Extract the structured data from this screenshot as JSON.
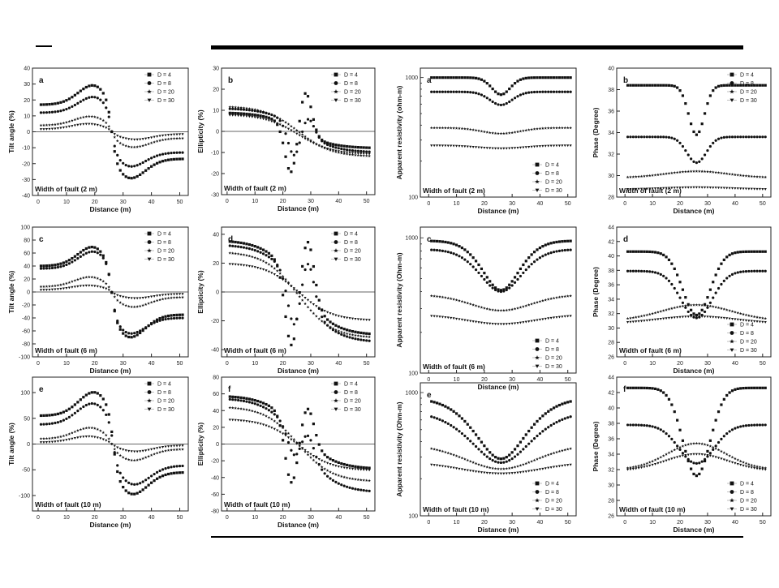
{
  "chart_data": [
    {
      "id": "tilt-2m",
      "type": "scatter",
      "panel_letter": "a",
      "annotation": "Width of fault (2 m)",
      "xlabel": "Distance (m)",
      "ylabel": "Tilt angle (%)",
      "xlim": [
        -2,
        53
      ],
      "ylim": [
        -40,
        40
      ],
      "xticks": [
        0,
        10,
        20,
        30,
        40,
        50
      ],
      "yticks": [
        -40,
        -30,
        -20,
        -10,
        0,
        10,
        20,
        30,
        40
      ],
      "zero_line": true,
      "legend_position": "top-right",
      "series": [
        {
          "name": "D = 4",
          "marker": "square",
          "shape": {
            "kind": "tilt",
            "peak": 32,
            "trough": -32,
            "base_l": 17,
            "base_r": -17,
            "x_peak": 21,
            "x_trough": 31
          }
        },
        {
          "name": "D = 8",
          "marker": "circle",
          "shape": {
            "kind": "tilt",
            "peak": 24,
            "trough": -24,
            "base_l": 12,
            "base_r": -13,
            "x_peak": 21,
            "x_trough": 31
          }
        },
        {
          "name": "D = 20",
          "marker": "star",
          "shape": {
            "kind": "tilt",
            "peak": 10,
            "trough": -10,
            "base_l": 4,
            "base_r": -4,
            "x_peak": 19,
            "x_trough": 33
          }
        },
        {
          "name": "D = 30",
          "marker": "triangle",
          "shape": {
            "kind": "tilt",
            "peak": 5,
            "trough": -5,
            "base_l": 1.5,
            "base_r": -1.5,
            "x_peak": 18,
            "x_trough": 34
          }
        }
      ]
    },
    {
      "id": "ellipticity-2m",
      "type": "scatter",
      "panel_letter": "b",
      "annotation": "Width of fault (2 m)",
      "xlabel": "Distance (m)",
      "ylabel": "Ellipticity (%)",
      "xlim": [
        -2,
        53
      ],
      "ylim": [
        -30,
        30
      ],
      "xticks": [
        0,
        10,
        20,
        30,
        40,
        50
      ],
      "yticks": [
        -30,
        -20,
        -10,
        0,
        10,
        20,
        30
      ],
      "zero_line": true,
      "legend_position": "top-right",
      "series": [
        {
          "name": "D = 4",
          "marker": "square",
          "shape": {
            "kind": "ellip",
            "start": 9,
            "end": -8,
            "min": -21,
            "max": 20,
            "x_min": 23,
            "x_max": 28
          }
        },
        {
          "name": "D = 8",
          "marker": "circle",
          "shape": {
            "kind": "ellip",
            "start": 11,
            "end": -10,
            "min": -12,
            "max": 7,
            "x_min": 24,
            "x_max": 29
          }
        },
        {
          "name": "D = 20",
          "marker": "star",
          "shape": {
            "kind": "ellip",
            "start": 12,
            "end": -12,
            "min": 0,
            "max": 0,
            "x_min": 25,
            "x_max": 26
          }
        },
        {
          "name": "D = 30",
          "marker": "triangle",
          "shape": {
            "kind": "ellip",
            "start": 8,
            "end": -11,
            "min": 0,
            "max": 0,
            "x_min": 25,
            "x_max": 26
          }
        }
      ]
    },
    {
      "id": "resistivity-2m",
      "type": "scatter",
      "panel_letter": "a",
      "annotation": "Width of fault (2 m)",
      "xlabel": "Distance (m)",
      "ylabel": "Apparent resistivity (ohm-m)",
      "log_y": true,
      "xlim": [
        -3,
        53
      ],
      "ylim": [
        100,
        1200
      ],
      "xticks": [
        0,
        10,
        20,
        30,
        40,
        50
      ],
      "ytick_labels": [
        {
          "v": 100,
          "t": "100"
        },
        {
          "v": 1000,
          "t": "1000"
        }
      ],
      "legend_position": "bottom-right",
      "series": [
        {
          "name": "D = 4",
          "marker": "square",
          "shape": {
            "kind": "dip",
            "base": 1000,
            "dip": 720,
            "w": 5
          }
        },
        {
          "name": "D = 8",
          "marker": "circle",
          "shape": {
            "kind": "dip",
            "base": 760,
            "dip": 590,
            "w": 6
          }
        },
        {
          "name": "D = 20",
          "marker": "star",
          "shape": {
            "kind": "dip",
            "base": 380,
            "dip": 340,
            "w": 10
          }
        },
        {
          "name": "D = 30",
          "marker": "triangle",
          "shape": {
            "kind": "dip",
            "base": 270,
            "dip": 255,
            "w": 12
          }
        }
      ]
    },
    {
      "id": "phase-2m",
      "type": "scatter",
      "panel_letter": "b",
      "annotation": "Width of fault (2 m)",
      "xlabel": "Distance (m)",
      "ylabel": "Phase (Degree)",
      "xlim": [
        -3,
        53
      ],
      "ylim": [
        28,
        40
      ],
      "xticks": [
        0,
        10,
        20,
        30,
        40,
        50
      ],
      "yticks": [
        28,
        30,
        32,
        34,
        36,
        38,
        40
      ],
      "legend_position": "top-right",
      "series": [
        {
          "name": "D = 4",
          "marker": "square",
          "shape": {
            "kind": "dip",
            "base": 38.4,
            "dip": 33.8,
            "w": 4
          }
        },
        {
          "name": "D = 8",
          "marker": "circle",
          "shape": {
            "kind": "dip",
            "base": 33.6,
            "dip": 31.2,
            "w": 5
          }
        },
        {
          "name": "D = 20",
          "marker": "star",
          "shape": {
            "kind": "hump",
            "base": 29.8,
            "peak": 30.4,
            "w": 16
          }
        },
        {
          "name": "D = 30",
          "marker": "triangle",
          "shape": {
            "kind": "hump",
            "base": 28.7,
            "peak": 28.9,
            "w": 18
          }
        }
      ]
    },
    {
      "id": "tilt-6m",
      "type": "scatter",
      "panel_letter": "c",
      "annotation": "Width of fault (6 m)",
      "xlabel": "Distance (m)",
      "ylabel": "Tilt angle (%)",
      "xlim": [
        -2,
        53
      ],
      "ylim": [
        -100,
        100
      ],
      "xticks": [
        0,
        10,
        20,
        30,
        40,
        50
      ],
      "yticks": [
        -100,
        -80,
        -60,
        -40,
        -20,
        0,
        20,
        40,
        60,
        80,
        100
      ],
      "zero_line": true,
      "legend_position": "top-right",
      "series": [
        {
          "name": "D = 4",
          "marker": "square",
          "shape": {
            "kind": "tilt",
            "peak": 77,
            "trough": -77,
            "base_l": 40,
            "base_r": -35,
            "x_peak": 21,
            "x_trough": 31
          }
        },
        {
          "name": "D = 8",
          "marker": "circle",
          "shape": {
            "kind": "tilt",
            "peak": 68,
            "trough": -70,
            "base_l": 36,
            "base_r": -40,
            "x_peak": 21,
            "x_trough": 31
          }
        },
        {
          "name": "D = 20",
          "marker": "star",
          "shape": {
            "kind": "tilt",
            "peak": 24,
            "trough": -24,
            "base_l": 8,
            "base_r": -8,
            "x_peak": 19,
            "x_trough": 33
          }
        },
        {
          "name": "D = 30",
          "marker": "triangle",
          "shape": {
            "kind": "tilt",
            "peak": 10,
            "trough": -10,
            "base_l": 3,
            "base_r": -3,
            "x_peak": 18,
            "x_trough": 34
          }
        }
      ]
    },
    {
      "id": "ellipticity-6m",
      "type": "scatter",
      "panel_letter": "d",
      "annotation": "Width of fault (6 m)",
      "xlabel": "Distance (m)",
      "ylabel": "Ellipticity (%)",
      "xlim": [
        -2,
        53
      ],
      "ylim": [
        -45,
        45
      ],
      "xticks": [
        0,
        10,
        20,
        30,
        40,
        50
      ],
      "yticks": [
        -40,
        -20,
        0,
        20,
        40
      ],
      "zero_line": true,
      "legend_position": "top-right",
      "series": [
        {
          "name": "D = 4",
          "marker": "square",
          "shape": {
            "kind": "ellip",
            "start": 36,
            "end": -30,
            "min": -38,
            "max": 36,
            "x_min": 23,
            "x_max": 29
          }
        },
        {
          "name": "D = 8",
          "marker": "circle",
          "shape": {
            "kind": "ellip",
            "start": 33,
            "end": -35,
            "min": -25,
            "max": 22,
            "x_min": 24,
            "x_max": 29
          }
        },
        {
          "name": "D = 20",
          "marker": "star",
          "shape": {
            "kind": "ellip",
            "start": 28,
            "end": -32,
            "min": 0,
            "max": 0,
            "x_min": 25,
            "x_max": 26
          }
        },
        {
          "name": "D = 30",
          "marker": "triangle",
          "shape": {
            "kind": "ellip",
            "start": 20,
            "end": -20,
            "min": 0,
            "max": 0,
            "x_min": 25,
            "x_max": 26
          }
        }
      ]
    },
    {
      "id": "resistivity-6m",
      "type": "scatter",
      "panel_letter": "c",
      "annotation": "Width of fault (6 m)",
      "xlabel": "Distance (m)",
      "ylabel": "Apparent resistivity (Ohm-m)",
      "log_y": true,
      "xlim": [
        -3,
        53
      ],
      "ylim": [
        100,
        1200
      ],
      "xticks": [
        0,
        10,
        20,
        30,
        40,
        50
      ],
      "ytick_labels": [
        {
          "v": 100,
          "t": "100"
        },
        {
          "v": 1000,
          "t": "1000"
        }
      ],
      "legend_position": "bottom-right",
      "series": [
        {
          "name": "D = 4",
          "marker": "square",
          "shape": {
            "kind": "dip",
            "base": 950,
            "dip": 410,
            "w": 11
          }
        },
        {
          "name": "D = 8",
          "marker": "circle",
          "shape": {
            "kind": "dip",
            "base": 820,
            "dip": 400,
            "w": 12
          }
        },
        {
          "name": "D = 20",
          "marker": "star",
          "shape": {
            "kind": "dip",
            "base": 380,
            "dip": 290,
            "w": 16
          }
        },
        {
          "name": "D = 30",
          "marker": "triangle",
          "shape": {
            "kind": "dip",
            "base": 270,
            "dip": 230,
            "w": 18
          }
        }
      ]
    },
    {
      "id": "phase-6m",
      "type": "scatter",
      "panel_letter": "d",
      "annotation": "Width of fault (6 m)",
      "xlabel": "Distance (m)",
      "ylabel": "Phase (Degree)",
      "xlim": [
        -3,
        53
      ],
      "ylim": [
        26,
        44
      ],
      "xticks": [
        0,
        10,
        20,
        30,
        40,
        50
      ],
      "yticks": [
        26,
        28,
        30,
        32,
        34,
        36,
        38,
        40,
        42,
        44
      ],
      "legend_position": "bottom-right",
      "series": [
        {
          "name": "D = 4",
          "marker": "square",
          "shape": {
            "kind": "dip",
            "base": 40.6,
            "dip": 31.8,
            "w": 7
          }
        },
        {
          "name": "D = 8",
          "marker": "circle",
          "shape": {
            "kind": "dip",
            "base": 37.9,
            "dip": 31.4,
            "w": 8
          }
        },
        {
          "name": "D = 20",
          "marker": "star",
          "shape": {
            "kind": "hump",
            "base": 31.0,
            "peak": 33.2,
            "w": 18
          }
        },
        {
          "name": "D = 30",
          "marker": "triangle",
          "shape": {
            "kind": "hump",
            "base": 30.6,
            "peak": 31.6,
            "w": 20
          }
        }
      ]
    },
    {
      "id": "tilt-10m",
      "type": "scatter",
      "panel_letter": "e",
      "annotation": "Width of fault (10 m)",
      "xlabel": "Distance (m)",
      "ylabel": "Tilt angle (%)",
      "xlim": [
        -2,
        53
      ],
      "ylim": [
        -130,
        130
      ],
      "xticks": [
        0,
        10,
        20,
        30,
        40,
        50
      ],
      "yticks": [
        -100,
        -50,
        0,
        50,
        100
      ],
      "zero_line": true,
      "legend_position": "top-right",
      "series": [
        {
          "name": "D = 4",
          "marker": "square",
          "shape": {
            "kind": "tilt",
            "peak": 108,
            "trough": -105,
            "base_l": 55,
            "base_r": -55,
            "x_peak": 21,
            "x_trough": 32
          }
        },
        {
          "name": "D = 8",
          "marker": "circle",
          "shape": {
            "kind": "tilt",
            "peak": 82,
            "trough": -82,
            "base_l": 38,
            "base_r": -42,
            "x_peak": 20,
            "x_trough": 33
          }
        },
        {
          "name": "D = 20",
          "marker": "star",
          "shape": {
            "kind": "tilt",
            "peak": 33,
            "trough": -33,
            "base_l": 10,
            "base_r": -10,
            "x_peak": 19,
            "x_trough": 33
          }
        },
        {
          "name": "D = 30",
          "marker": "triangle",
          "shape": {
            "kind": "tilt",
            "peak": 15,
            "trough": -15,
            "base_l": 3,
            "base_r": -3,
            "x_peak": 18,
            "x_trough": 34
          }
        }
      ]
    },
    {
      "id": "ellipticity-10m",
      "type": "scatter",
      "panel_letter": "f",
      "annotation": "Width of fault (10 m)",
      "xlabel": "Distance (m)",
      "ylabel": "Ellipticity (%)",
      "xlim": [
        -2,
        53
      ],
      "ylim": [
        -80,
        80
      ],
      "xticks": [
        0,
        10,
        20,
        30,
        40,
        50
      ],
      "yticks": [
        -80,
        -60,
        -40,
        -20,
        0,
        20,
        40,
        60,
        80
      ],
      "zero_line": true,
      "legend_position": "top-right",
      "series": [
        {
          "name": "D = 4",
          "marker": "square",
          "shape": {
            "kind": "ellip",
            "start": 58,
            "end": -30,
            "min": -47,
            "max": 44,
            "x_min": 23,
            "x_max": 29
          }
        },
        {
          "name": "D = 8",
          "marker": "circle",
          "shape": {
            "kind": "ellip",
            "start": 55,
            "end": -58,
            "min": -15,
            "max": 12,
            "x_min": 24,
            "x_max": 29
          }
        },
        {
          "name": "D = 20",
          "marker": "star",
          "shape": {
            "kind": "ellip",
            "start": 45,
            "end": -45,
            "min": 0,
            "max": 0,
            "x_min": 25,
            "x_max": 26
          }
        },
        {
          "name": "D = 30",
          "marker": "triangle",
          "shape": {
            "kind": "ellip",
            "start": 30,
            "end": -32,
            "min": 0,
            "max": 0,
            "x_min": 25,
            "x_max": 26
          }
        }
      ]
    },
    {
      "id": "resistivity-10m",
      "type": "scatter",
      "panel_letter": "e",
      "annotation": "Width of fault (10 m)",
      "xlabel": "Distance (m)",
      "ylabel": "Apparent resistivity (Ohm-m)",
      "log_y": true,
      "xlim": [
        -3,
        53
      ],
      "ylim": [
        100,
        1200
      ],
      "xticks": [
        0,
        10,
        20,
        30,
        40,
        50
      ],
      "ytick_labels": [
        {
          "v": 100,
          "t": "100"
        },
        {
          "v": 1000,
          "t": "1000"
        }
      ],
      "legend_position": "bottom-right",
      "series": [
        {
          "name": "D = 4",
          "marker": "square",
          "shape": {
            "kind": "dip",
            "base": 900,
            "dip": 290,
            "w": 16
          }
        },
        {
          "name": "D = 8",
          "marker": "circle",
          "shape": {
            "kind": "dip",
            "base": 700,
            "dip": 270,
            "w": 18
          }
        },
        {
          "name": "D = 20",
          "marker": "star",
          "shape": {
            "kind": "dip",
            "base": 380,
            "dip": 240,
            "w": 20
          }
        },
        {
          "name": "D = 30",
          "marker": "triangle",
          "shape": {
            "kind": "dip",
            "base": 275,
            "dip": 220,
            "w": 22
          }
        }
      ]
    },
    {
      "id": "phase-10m",
      "type": "scatter",
      "panel_letter": "f",
      "annotation": "Width of fault (10 m)",
      "xlabel": "Distance (m)",
      "ylabel": "Phase (Degree)",
      "xlim": [
        -3,
        53
      ],
      "ylim": [
        26,
        44
      ],
      "xticks": [
        0,
        10,
        20,
        30,
        40,
        50
      ],
      "yticks": [
        26,
        28,
        30,
        32,
        34,
        36,
        38,
        40,
        42,
        44
      ],
      "legend_position": "bottom-right",
      "series": [
        {
          "name": "D = 4",
          "marker": "square",
          "shape": {
            "kind": "dip",
            "base": 42.6,
            "dip": 31.2,
            "w": 7
          }
        },
        {
          "name": "D = 8",
          "marker": "circle",
          "shape": {
            "kind": "dip",
            "base": 37.8,
            "dip": 32.8,
            "w": 9
          }
        },
        {
          "name": "D = 20",
          "marker": "star",
          "shape": {
            "kind": "hump",
            "base": 32.0,
            "peak": 35.4,
            "w": 15
          }
        },
        {
          "name": "D = 30",
          "marker": "triangle",
          "shape": {
            "kind": "hump",
            "base": 31.8,
            "peak": 34.0,
            "w": 16
          }
        }
      ]
    }
  ]
}
